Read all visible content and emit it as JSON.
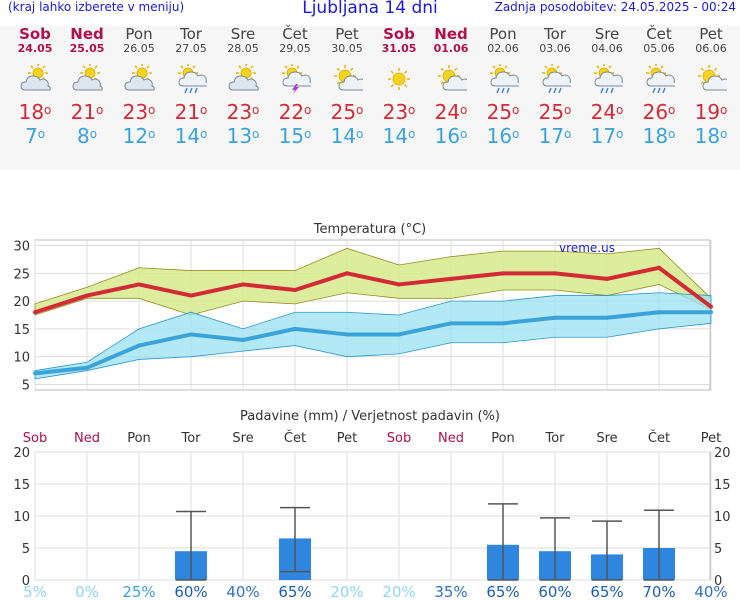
{
  "header": {
    "note": "(kraj lahko izberete v meniju)",
    "title": "Ljubljana 14 dni",
    "updated": "Zadnja posodobitev: 24.05.2025 - 00:24"
  },
  "days": [
    {
      "name": "Sob",
      "date": "24.05",
      "weekend": true,
      "icon": "partly-cloudy-icon",
      "tmax": "18",
      "tmin": "7"
    },
    {
      "name": "Ned",
      "date": "25.05",
      "weekend": true,
      "icon": "partly-cloudy-icon",
      "tmax": "21",
      "tmin": "8"
    },
    {
      "name": "Pon",
      "date": "26.05",
      "weekend": false,
      "icon": "partly-cloudy-icon",
      "tmax": "23",
      "tmin": "12"
    },
    {
      "name": "Tor",
      "date": "27.05",
      "weekend": false,
      "icon": "sun-rain-icon",
      "tmax": "21",
      "tmin": "14"
    },
    {
      "name": "Sre",
      "date": "28.05",
      "weekend": false,
      "icon": "partly-cloudy-icon",
      "tmax": "23",
      "tmin": "13"
    },
    {
      "name": "Čet",
      "date": "29.05",
      "weekend": false,
      "icon": "thunderstorm-icon",
      "tmax": "22",
      "tmin": "15"
    },
    {
      "name": "Pet",
      "date": "30.05",
      "weekend": false,
      "icon": "mostly-sunny-icon",
      "tmax": "25",
      "tmin": "14"
    },
    {
      "name": "Sob",
      "date": "31.05",
      "weekend": true,
      "icon": "sunny-icon",
      "tmax": "23",
      "tmin": "14"
    },
    {
      "name": "Ned",
      "date": "01.06",
      "weekend": true,
      "icon": "mostly-sunny-icon",
      "tmax": "24",
      "tmin": "16"
    },
    {
      "name": "Pon",
      "date": "02.06",
      "weekend": false,
      "icon": "sun-rain-icon",
      "tmax": "25",
      "tmin": "16"
    },
    {
      "name": "Tor",
      "date": "03.06",
      "weekend": false,
      "icon": "sun-rain-icon",
      "tmax": "25",
      "tmin": "17"
    },
    {
      "name": "Sre",
      "date": "04.06",
      "weekend": false,
      "icon": "sun-rain-icon",
      "tmax": "24",
      "tmin": "17"
    },
    {
      "name": "Čet",
      "date": "05.06",
      "weekend": false,
      "icon": "sun-rain-icon",
      "tmax": "26",
      "tmin": "18"
    },
    {
      "name": "Pet",
      "date": "06.06",
      "weekend": false,
      "icon": "mostly-sunny-icon",
      "tmax": "19",
      "tmin": "18"
    }
  ],
  "colors": {
    "max_line": "#d42a37",
    "max_band": "#d6eb8c",
    "min_line": "#3aa4da",
    "min_band": "#99e1f0",
    "bar": "#2e86de",
    "weekend": "#b0104c",
    "title": "#1a1adb",
    "prob_strong": "#1a5fb4",
    "prob_light": "#8fd6f0"
  },
  "chart_data": [
    {
      "type": "line",
      "title": "Temperatura (°C)",
      "watermark": "vreme.us",
      "categories": [
        "Sob",
        "Ned",
        "Pon",
        "Tor",
        "Sre",
        "Čet",
        "Pet",
        "Sob",
        "Ned",
        "Pon",
        "Tor",
        "Sre",
        "Čet",
        "Pet"
      ],
      "ylim": [
        4,
        31
      ],
      "yticks": [
        5,
        10,
        15,
        20,
        25,
        30
      ],
      "grid": true,
      "series": [
        {
          "values": [
            18,
            21,
            23,
            21,
            23,
            22,
            25,
            23,
            24,
            25,
            25,
            24,
            26,
            19
          ],
          "band_low": [
            17.5,
            20.5,
            20.5,
            17.5,
            20,
            19.5,
            21.5,
            20.5,
            20.5,
            22,
            22,
            21,
            23,
            18.5
          ],
          "band_high": [
            19.5,
            22.5,
            26,
            25.5,
            25.5,
            25.5,
            29.5,
            26.5,
            28,
            29,
            29,
            28.5,
            29.5,
            20.5
          ]
        },
        {
          "values": [
            7,
            8,
            12,
            14,
            13,
            15,
            14,
            14,
            16,
            16,
            17,
            17,
            18,
            18
          ],
          "band_low": [
            6,
            7.5,
            9.5,
            10,
            11,
            12,
            10,
            10.5,
            12.5,
            12.5,
            13.5,
            13.5,
            15,
            16
          ],
          "band_high": [
            7.5,
            9,
            15,
            18,
            15,
            18,
            18,
            17.5,
            20,
            20,
            21,
            21,
            21.5,
            21
          ]
        }
      ]
    },
    {
      "type": "bar",
      "title": "Padavine (mm) / Verjetnost padavin (%)",
      "categories": [
        "Sob",
        "Ned",
        "Pon",
        "Tor",
        "Sre",
        "Čet",
        "Pet",
        "Sob",
        "Ned",
        "Pon",
        "Tor",
        "Sre",
        "Čet",
        "Pet"
      ],
      "ylim": [
        0,
        20
      ],
      "yticks": [
        0,
        5,
        10,
        15,
        20
      ],
      "values": [
        0,
        0,
        0,
        4.5,
        0,
        6.5,
        0,
        0,
        0,
        5.5,
        4.5,
        4,
        5,
        0
      ],
      "error_high": [
        0,
        0,
        0,
        10.7,
        0,
        11.3,
        0,
        0,
        0,
        11.9,
        9.7,
        9.2,
        10.9,
        0
      ],
      "error_low": [
        0,
        0,
        0,
        0,
        0,
        1.3,
        0,
        0,
        0,
        0,
        0,
        0,
        0,
        0
      ],
      "probability": [
        "5%",
        "0%",
        "25%",
        "60%",
        "40%",
        "65%",
        "20%",
        "20%",
        "35%",
        "65%",
        "60%",
        "65%",
        "70%",
        "40%"
      ]
    }
  ]
}
